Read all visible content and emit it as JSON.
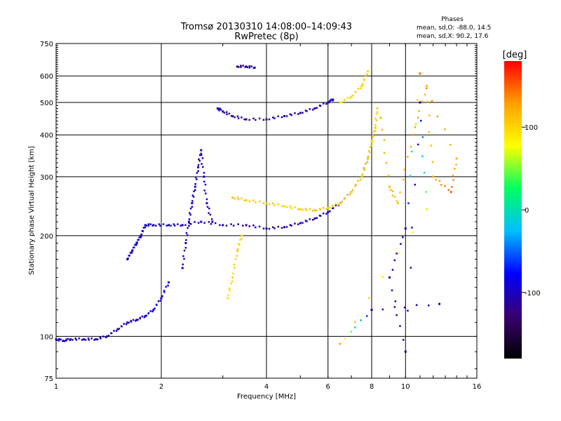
{
  "chart_data": {
    "type": "scatter",
    "title": "Tromsø 20130310 14:08:00–14:09:43",
    "subtitle": "RwPretec (8p)",
    "xlabel": "Frequency [MHz]",
    "ylabel": "Stationary phase Virtual Height [km]",
    "x_scale": "log",
    "y_scale": "log",
    "xlim": [
      1,
      16
    ],
    "ylim": [
      75,
      750
    ],
    "x_ticks": [
      1,
      2,
      4,
      6,
      8,
      10,
      16
    ],
    "y_ticks": [
      75,
      100,
      200,
      300,
      400,
      500,
      600,
      750
    ],
    "grid": true,
    "phase_info": {
      "title": "Phases",
      "line1": "mean, sd,O: -88.0, 14.5",
      "line2": "mean, sd,X: 90.2, 17.6"
    },
    "colorbar": {
      "label": "[deg]",
      "range": [
        -180,
        180
      ],
      "ticks": [
        100,
        0,
        -100
      ],
      "colors": [
        "#000000",
        "#3a0070",
        "#0000ff",
        "#00bfff",
        "#00ff60",
        "#ffff00",
        "#ffa000",
        "#ff0000"
      ]
    },
    "series": [
      {
        "points": [
          [
            1.0,
            98,
            -100
          ],
          [
            1.05,
            97,
            -100
          ],
          [
            1.1,
            98,
            -100
          ],
          [
            1.2,
            98,
            -100
          ],
          [
            1.3,
            98,
            -105
          ],
          [
            1.4,
            100,
            -110
          ],
          [
            1.5,
            105,
            -100
          ],
          [
            1.6,
            110,
            -95
          ],
          [
            1.7,
            112,
            -100
          ],
          [
            1.8,
            115,
            -95
          ],
          [
            1.9,
            120,
            -90
          ],
          [
            2.0,
            130,
            -95
          ],
          [
            2.1,
            145,
            -90
          ]
        ]
      },
      {
        "points": [
          [
            1.6,
            170,
            -95
          ],
          [
            1.65,
            180,
            -100
          ],
          [
            1.7,
            190,
            -95
          ],
          [
            1.75,
            200,
            -100
          ],
          [
            1.8,
            215,
            -95
          ],
          [
            1.9,
            215,
            -100
          ],
          [
            2.1,
            215,
            -95
          ],
          [
            2.3,
            215,
            -100
          ],
          [
            2.6,
            220,
            -95
          ],
          [
            3.0,
            215,
            -110
          ],
          [
            3.5,
            215,
            -115
          ],
          [
            4.0,
            210,
            -110
          ],
          [
            4.5,
            212,
            -105
          ],
          [
            5.0,
            218,
            -100
          ],
          [
            5.5,
            225,
            -100
          ],
          [
            6.0,
            235,
            -100
          ],
          [
            6.5,
            250,
            -95
          ],
          [
            7.0,
            270,
            -100
          ],
          [
            7.5,
            300,
            -95
          ],
          [
            7.8,
            340,
            -100
          ]
        ]
      },
      {
        "points": [
          [
            2.3,
            160,
            -95
          ],
          [
            2.35,
            190,
            -100
          ],
          [
            2.4,
            220,
            -95
          ],
          [
            2.45,
            250,
            -100
          ],
          [
            2.5,
            280,
            -95
          ],
          [
            2.55,
            320,
            -100
          ],
          [
            2.6,
            360,
            -95
          ],
          [
            2.65,
            300,
            -100
          ],
          [
            2.7,
            250,
            -95
          ],
          [
            2.8,
            220,
            -100
          ]
        ]
      },
      {
        "points": [
          [
            2.9,
            480,
            -100
          ],
          [
            3.0,
            470,
            -110
          ],
          [
            3.2,
            455,
            -115
          ],
          [
            3.5,
            445,
            -120
          ],
          [
            4.0,
            445,
            -115
          ],
          [
            4.5,
            455,
            -110
          ],
          [
            5.0,
            465,
            -105
          ],
          [
            5.5,
            480,
            -100
          ],
          [
            6.0,
            500,
            -95
          ],
          [
            6.2,
            510,
            -95
          ]
        ]
      },
      {
        "points": [
          [
            3.3,
            640,
            -120
          ],
          [
            3.5,
            640,
            -115
          ],
          [
            3.7,
            635,
            -110
          ]
        ]
      },
      {
        "points": [
          [
            3.2,
            260,
            110
          ],
          [
            3.5,
            255,
            105
          ],
          [
            4.0,
            250,
            110
          ],
          [
            4.5,
            245,
            100
          ],
          [
            5.0,
            240,
            105
          ],
          [
            5.5,
            238,
            110
          ],
          [
            6.0,
            242,
            100
          ],
          [
            6.5,
            250,
            105
          ],
          [
            7.0,
            270,
            100
          ],
          [
            7.5,
            300,
            105
          ],
          [
            7.8,
            340,
            110
          ],
          [
            8.0,
            380,
            105
          ],
          [
            8.2,
            420,
            110
          ],
          [
            8.3,
            480,
            100
          ]
        ]
      },
      {
        "points": [
          [
            3.1,
            130,
            95
          ],
          [
            3.2,
            150,
            100
          ],
          [
            3.3,
            180,
            105
          ],
          [
            3.4,
            200,
            95
          ]
        ]
      },
      {
        "points": [
          [
            6.5,
            500,
            95
          ],
          [
            7.0,
            520,
            100
          ],
          [
            7.5,
            560,
            105
          ],
          [
            7.8,
            620,
            100
          ]
        ]
      },
      {
        "points": [
          [
            8.5,
            450,
            115
          ],
          [
            9.0,
            280,
            120
          ],
          [
            9.5,
            250,
            105
          ],
          [
            10.5,
            400,
            130
          ],
          [
            11.5,
            560,
            110
          ],
          [
            12.0,
            300,
            120
          ],
          [
            13.5,
            270,
            150
          ],
          [
            14.0,
            340,
            115
          ],
          [
            11.0,
            610,
            145
          ],
          [
            10.0,
            210,
            -110
          ],
          [
            9.0,
            150,
            -100
          ],
          [
            10.0,
            90,
            -110
          ],
          [
            11.0,
            500,
            -100
          ],
          [
            11.5,
            240,
            70
          ],
          [
            6.5,
            95,
            120
          ],
          [
            8.0,
            120,
            -100
          ],
          [
            12.5,
            125,
            -105
          ]
        ]
      }
    ]
  }
}
